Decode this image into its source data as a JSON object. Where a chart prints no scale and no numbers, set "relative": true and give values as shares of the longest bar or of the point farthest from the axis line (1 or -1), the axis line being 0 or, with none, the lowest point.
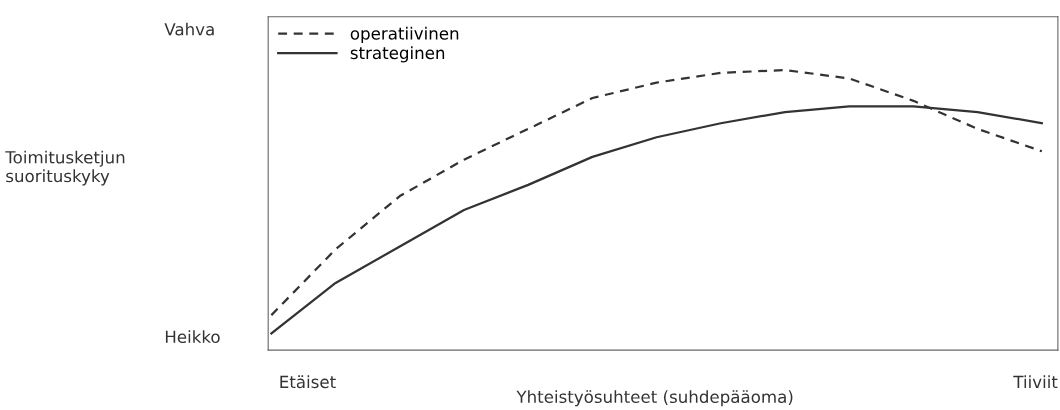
{
  "chart_data": {
    "type": "line",
    "relative": true,
    "xlabel": "Yhteistyösuhteet (suhdepääoma)",
    "annotations": [
      "Vahva",
      "Heikko",
      "Etäiset",
      "Tiiviit",
      "Toimitusketjun\nsuorituskyky"
    ],
    "categories": [
      null,
      null,
      null,
      null,
      null,
      null,
      null,
      null,
      null,
      null,
      null,
      null,
      null
    ],
    "series": [
      {
        "name": "operatiivinen",
        "color": "#333333",
        "line_style": "dashed",
        "values": [
          0.125,
          0.36,
          0.55,
          0.68,
          0.79,
          0.9,
          0.955,
          0.99,
          1.0,
          0.97,
          0.89,
          0.79,
          0.71
        ]
      },
      {
        "name": "strateginen",
        "color": "#333333",
        "line_style": "solid",
        "values": [
          0.06,
          0.24,
          0.37,
          0.5,
          0.59,
          0.69,
          0.76,
          0.81,
          0.85,
          0.87,
          0.87,
          0.85,
          0.81
        ]
      }
    ],
    "legend": "top left",
    "marker": "none"
  }
}
